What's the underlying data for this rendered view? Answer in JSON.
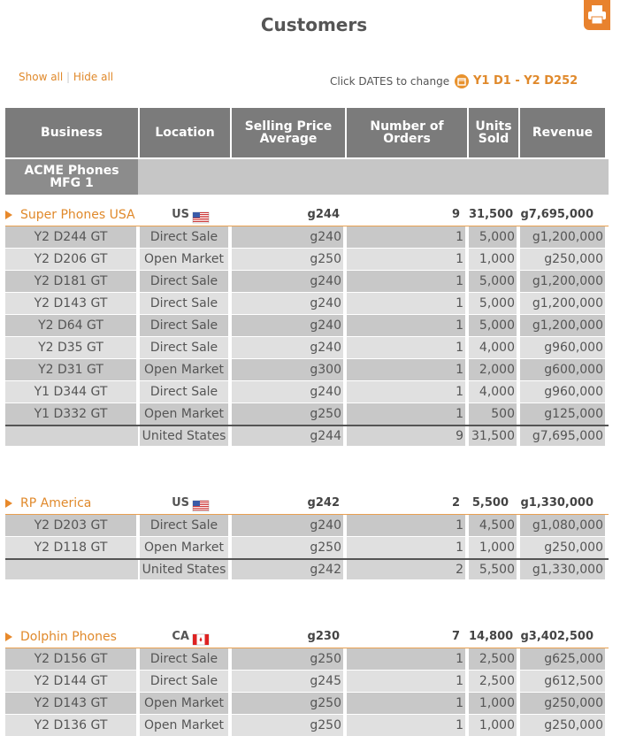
{
  "header": {
    "title": "Customers"
  },
  "toolbar": {
    "show_all": "Show all",
    "separator": "|",
    "hide_all": "Hide all",
    "date_hint": "Click DATES to change",
    "date_range": "Y1 D1 - Y2 D252"
  },
  "table": {
    "columns": [
      "Business",
      "Location",
      "Selling Price Average",
      "Number of Orders",
      "Units Sold",
      "Revenue"
    ],
    "company": "ACME Phones MFG 1",
    "groups": [
      {
        "name": "Super Phones USA",
        "country": "US",
        "values": [
          "g244",
          "9",
          "31,500",
          "g7,695,000"
        ],
        "rows": [
          [
            "Y2 D244 GT",
            "Direct Sale",
            "g240",
            "1",
            "5,000",
            "g1,200,000"
          ],
          [
            "Y2 D206 GT",
            "Open Market",
            "g250",
            "1",
            "1,000",
            "g250,000"
          ],
          [
            "Y2 D181 GT",
            "Direct Sale",
            "g240",
            "1",
            "5,000",
            "g1,200,000"
          ],
          [
            "Y2 D143 GT",
            "Direct Sale",
            "g240",
            "1",
            "5,000",
            "g1,200,000"
          ],
          [
            "Y2 D64 GT",
            "Direct Sale",
            "g240",
            "1",
            "5,000",
            "g1,200,000"
          ],
          [
            "Y2 D35 GT",
            "Direct Sale",
            "g240",
            "1",
            "4,000",
            "g960,000"
          ],
          [
            "Y2 D31 GT",
            "Open Market",
            "g300",
            "1",
            "2,000",
            "g600,000"
          ],
          [
            "Y1 D344 GT",
            "Direct Sale",
            "g240",
            "1",
            "4,000",
            "g960,000"
          ],
          [
            "Y1 D332 GT",
            "Open Market",
            "g250",
            "1",
            "500",
            "g125,000"
          ]
        ],
        "total": [
          "United States",
          "g244",
          "9",
          "31,500",
          "g7,695,000"
        ]
      },
      {
        "name": "RP America",
        "country": "US",
        "values": [
          "g242",
          "2",
          "5,500",
          "g1,330,000"
        ],
        "rows": [
          [
            "Y2 D203 GT",
            "Direct Sale",
            "g240",
            "1",
            "4,500",
            "g1,080,000"
          ],
          [
            "Y2 D118 GT",
            "Open Market",
            "g250",
            "1",
            "1,000",
            "g250,000"
          ]
        ],
        "total": [
          "United States",
          "g242",
          "2",
          "5,500",
          "g1,330,000"
        ]
      },
      {
        "name": "Dolphin Phones",
        "country": "CA",
        "values": [
          "g230",
          "7",
          "14,800",
          "g3,402,500"
        ],
        "rows": [
          [
            "Y2 D156 GT",
            "Direct Sale",
            "g250",
            "1",
            "2,500",
            "g625,000"
          ],
          [
            "Y2 D144 GT",
            "Direct Sale",
            "g245",
            "1",
            "2,500",
            "g612,500"
          ],
          [
            "Y2 D143 GT",
            "Open Market",
            "g250",
            "1",
            "1,000",
            "g250,000"
          ],
          [
            "Y2 D136 GT",
            "Open Market",
            "g250",
            "1",
            "1,000",
            "g250,000"
          ]
        ]
      }
    ]
  }
}
